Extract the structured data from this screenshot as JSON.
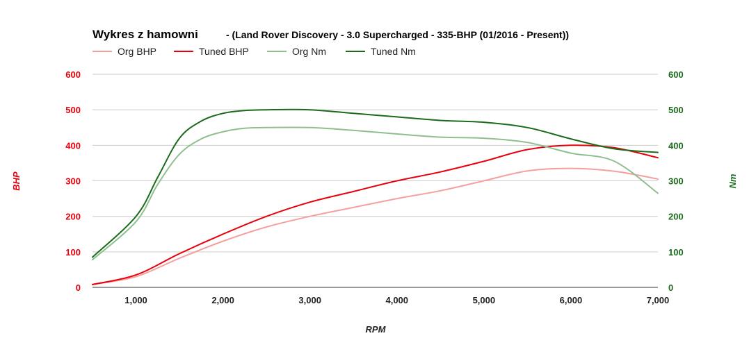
{
  "chart_data": {
    "type": "line",
    "title": "Wykres z hamowni",
    "subtitle": "- (Land Rover Discovery - 3.0 Supercharged - 335-BHP (01/2016 - Present))",
    "xlabel": "RPM",
    "ylabel_left": "BHP",
    "ylabel_right": "Nm",
    "xlim": [
      500,
      7000
    ],
    "ylim_left": [
      0,
      600
    ],
    "ylim_right": [
      0,
      600
    ],
    "x_ticks": [
      1000,
      2000,
      3000,
      4000,
      5000,
      6000,
      7000
    ],
    "x_tick_labels": [
      "1,000",
      "2,000",
      "3,000",
      "4,000",
      "5,000",
      "6,000",
      "7,000"
    ],
    "y_ticks_left": [
      "0",
      "100",
      "200",
      "300",
      "400",
      "500",
      "600"
    ],
    "y_ticks_right": [
      "0",
      "100",
      "200",
      "300",
      "400",
      "500",
      "600"
    ],
    "y_tick_values": [
      0,
      100,
      200,
      300,
      400,
      500,
      600
    ],
    "grid": true,
    "legend_position": "top-left",
    "colors": {
      "left_axis": "#e8000b",
      "right_axis": "#1b6b1b"
    },
    "series": [
      {
        "name": "Org BHP",
        "axis": "left",
        "color": "#f4a0a0",
        "x": [
          500,
          1000,
          1500,
          2000,
          2500,
          3000,
          3500,
          4000,
          4500,
          5000,
          5500,
          6000,
          6500,
          7000
        ],
        "values": [
          8,
          30,
          82,
          130,
          170,
          200,
          225,
          250,
          272,
          300,
          328,
          335,
          327,
          305
        ]
      },
      {
        "name": "Tuned BHP",
        "axis": "left",
        "color": "#e8000b",
        "x": [
          500,
          1000,
          1500,
          2000,
          2500,
          3000,
          3500,
          4000,
          4500,
          5000,
          5500,
          6000,
          6500,
          7000
        ],
        "values": [
          8,
          35,
          95,
          150,
          200,
          240,
          270,
          300,
          325,
          355,
          388,
          400,
          393,
          365
        ]
      },
      {
        "name": "Org Nm",
        "axis": "right",
        "color": "#8fbf8f",
        "x": [
          500,
          1000,
          1250,
          1500,
          1750,
          2000,
          2250,
          2500,
          3000,
          3500,
          4000,
          4500,
          5000,
          5500,
          6000,
          6500,
          7000
        ],
        "values": [
          78,
          185,
          290,
          375,
          418,
          438,
          448,
          450,
          450,
          442,
          432,
          423,
          420,
          408,
          378,
          355,
          265
        ]
      },
      {
        "name": "Tuned Nm",
        "axis": "right",
        "color": "#1b6b1b",
        "x": [
          500,
          1000,
          1250,
          1500,
          1750,
          2000,
          2250,
          2500,
          3000,
          3500,
          4000,
          4500,
          5000,
          5500,
          6000,
          6500,
          7000
        ],
        "values": [
          85,
          200,
          310,
          420,
          468,
          490,
          498,
          500,
          500,
          490,
          480,
          470,
          465,
          450,
          418,
          390,
          380
        ]
      }
    ]
  }
}
